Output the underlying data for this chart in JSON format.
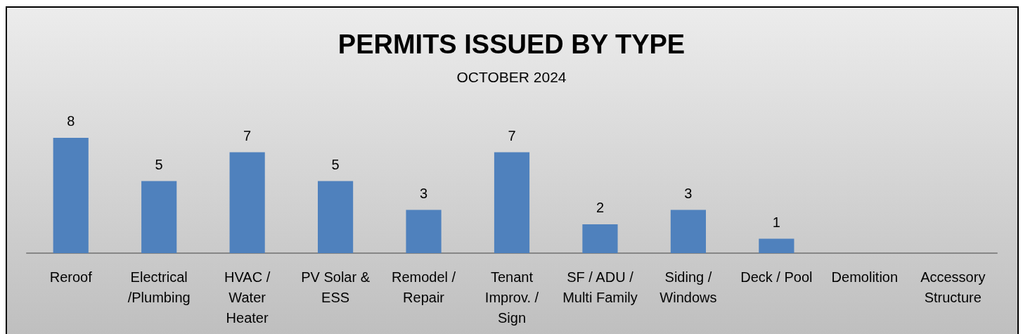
{
  "chart_data": {
    "type": "bar",
    "title": "PERMITS ISSUED BY TYPE",
    "subtitle": "OCTOBER 2024",
    "categories": [
      "Reroof",
      "Electrical /Plumbing",
      "HVAC / Water Heater",
      "PV Solar & ESS",
      "Remodel / Repair",
      "Tenant Improv. / Sign",
      "SF / ADU / Multi Family",
      "Siding / Windows",
      "Deck / Pool",
      "Demolition",
      "Accessory Structure"
    ],
    "values": [
      8,
      5,
      7,
      5,
      3,
      7,
      2,
      3,
      1,
      0,
      0
    ],
    "value_labels": [
      "8",
      "5",
      "7",
      "5",
      "3",
      "7",
      "2",
      "3",
      "1",
      null,
      null
    ],
    "color": "#4f81bd",
    "tick_labels": "x",
    "grid": false
  }
}
